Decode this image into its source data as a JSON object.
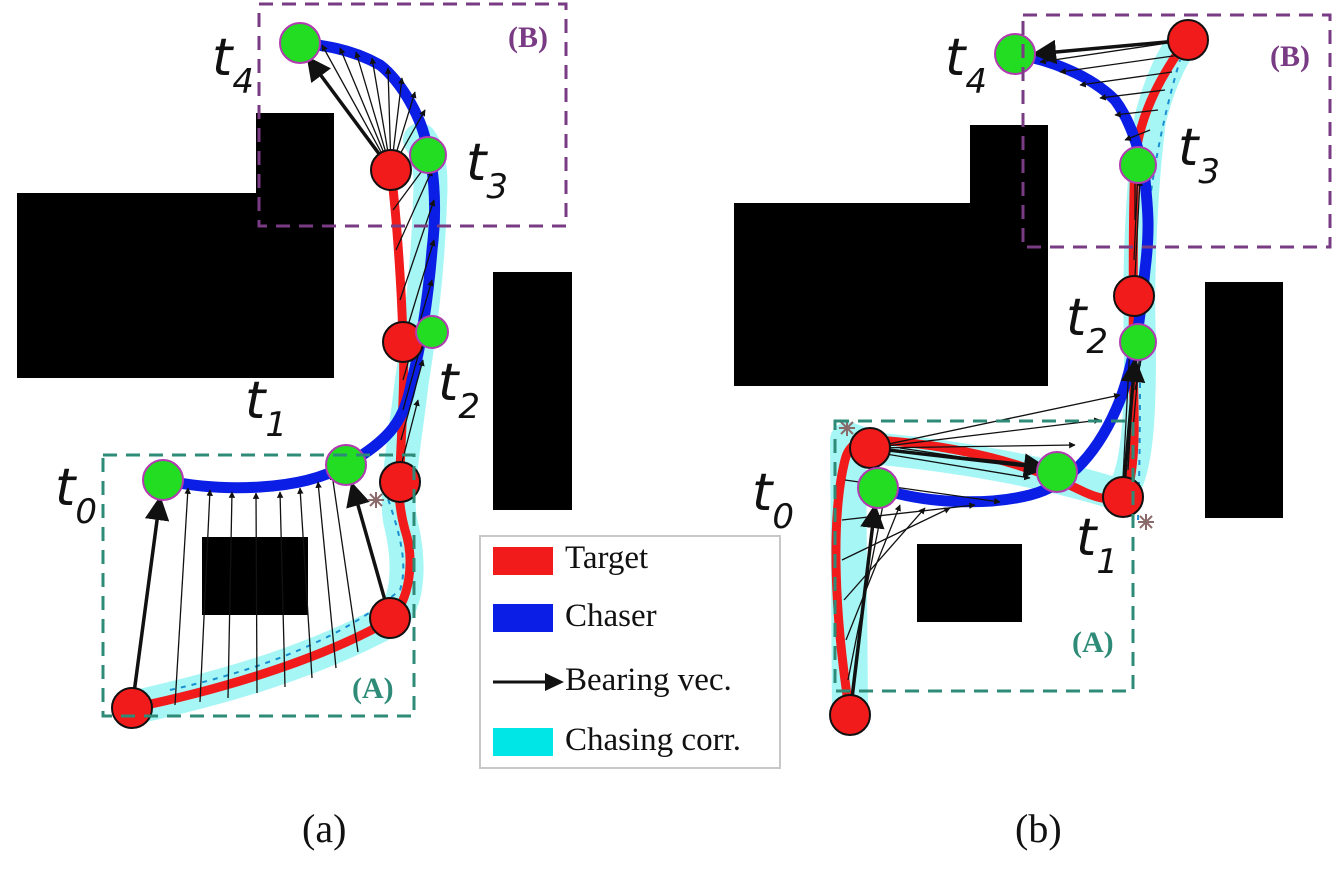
{
  "colors": {
    "target": "#f21b1b",
    "chaser": "#0a1ee6",
    "bearing": "#111111",
    "corridor": "#00e5e5",
    "obstacle": "#000000",
    "region_a": "#2e8b78",
    "region_b": "#7a3b85",
    "chaser_marker": "#22dd22"
  },
  "legend": {
    "target": "Target",
    "chaser": "Chaser",
    "bearing": "Bearing vec.",
    "corridor": "Chasing corr."
  },
  "panels": [
    {
      "caption": "(a)",
      "region_a": "(A)",
      "region_b": "(B)",
      "times": {
        "t0": "0",
        "t1": "1",
        "t2": "2",
        "t3": "3",
        "t4": "4"
      }
    },
    {
      "caption": "(b)",
      "region_a": "(A)",
      "region_b": "(B)",
      "times": {
        "t0": "0",
        "t1": "1",
        "t2": "2",
        "t3": "3",
        "t4": "4"
      }
    }
  ]
}
